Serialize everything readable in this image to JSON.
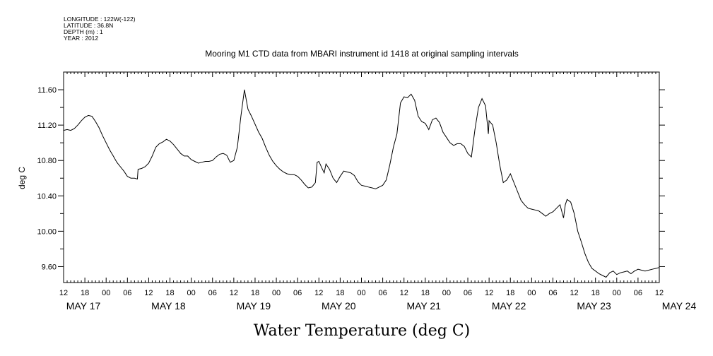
{
  "chart_data": {
    "type": "line",
    "header_info": [
      "LONGITUDE : 122W(-122)",
      "LATITUDE : 36.8N",
      "DEPTH (m) : 1",
      "YEAR : 2012"
    ],
    "title": "Mooring M1 CTD data from MBARI instrument id 1418 at original sampling intervals",
    "xlabel": "Water Temperature (deg C)",
    "ylabel": "deg C",
    "x_unit": "hours since 2012-05-16 12:00",
    "xlim": [
      0,
      168
    ],
    "ylim": [
      9.42,
      11.8
    ],
    "y_ticks": [
      "11.60",
      "11.20",
      "10.80",
      "10.40",
      "10.00",
      "9.60"
    ],
    "y_tick_values": [
      11.6,
      11.2,
      10.8,
      10.4,
      10.0,
      9.6
    ],
    "x_hour_labels": [
      "12",
      "18",
      "00",
      "06",
      "12",
      "18",
      "00",
      "06",
      "12",
      "18",
      "00",
      "06",
      "12",
      "18",
      "00",
      "06",
      "12",
      "18",
      "00",
      "06",
      "12",
      "18",
      "00",
      "06",
      "12",
      "18",
      "00",
      "06",
      "12"
    ],
    "x_day_labels": [
      {
        "label": "MAY 17",
        "hour": 12
      },
      {
        "label": "MAY 18",
        "hour": 36
      },
      {
        "label": "MAY 19",
        "hour": 60
      },
      {
        "label": "MAY 20",
        "hour": 84
      },
      {
        "label": "MAY 21",
        "hour": 108
      },
      {
        "label": "MAY 22",
        "hour": 132
      },
      {
        "label": "MAY 23",
        "hour": 156
      },
      {
        "label": "MAY 24",
        "hour": 180
      }
    ],
    "grid": false,
    "series": [
      {
        "name": "",
        "color": "#000000",
        "points": [
          [
            0,
            11.14
          ],
          [
            1,
            11.15
          ],
          [
            2,
            11.14
          ],
          [
            3,
            11.16
          ],
          [
            4,
            11.2
          ],
          [
            5,
            11.25
          ],
          [
            6,
            11.29
          ],
          [
            7,
            11.31
          ],
          [
            8,
            11.3
          ],
          [
            9,
            11.24
          ],
          [
            10,
            11.17
          ],
          [
            11,
            11.08
          ],
          [
            12,
            11.0
          ],
          [
            13,
            10.92
          ],
          [
            14,
            10.85
          ],
          [
            15,
            10.78
          ],
          [
            16,
            10.73
          ],
          [
            17,
            10.68
          ],
          [
            18,
            10.62
          ],
          [
            19,
            10.6
          ],
          [
            20,
            10.6
          ],
          [
            20.8,
            10.59
          ],
          [
            21,
            10.7
          ],
          [
            22,
            10.71
          ],
          [
            23,
            10.73
          ],
          [
            24,
            10.77
          ],
          [
            25,
            10.85
          ],
          [
            26,
            10.95
          ],
          [
            27,
            10.99
          ],
          [
            28,
            11.01
          ],
          [
            29,
            11.04
          ],
          [
            30,
            11.02
          ],
          [
            31,
            10.98
          ],
          [
            32,
            10.93
          ],
          [
            33,
            10.88
          ],
          [
            34,
            10.85
          ],
          [
            35,
            10.85
          ],
          [
            36,
            10.81
          ],
          [
            37,
            10.79
          ],
          [
            38,
            10.77
          ],
          [
            39,
            10.78
          ],
          [
            40,
            10.79
          ],
          [
            41,
            10.79
          ],
          [
            42,
            10.8
          ],
          [
            43,
            10.84
          ],
          [
            44,
            10.87
          ],
          [
            45,
            10.88
          ],
          [
            46,
            10.86
          ],
          [
            47,
            10.78
          ],
          [
            48,
            10.8
          ],
          [
            49,
            10.95
          ],
          [
            50,
            11.3
          ],
          [
            51,
            11.6
          ],
          [
            52,
            11.38
          ],
          [
            53,
            11.3
          ],
          [
            54,
            11.21
          ],
          [
            55,
            11.12
          ],
          [
            56,
            11.05
          ],
          [
            57,
            10.95
          ],
          [
            58,
            10.86
          ],
          [
            59,
            10.79
          ],
          [
            60,
            10.74
          ],
          [
            61,
            10.7
          ],
          [
            62,
            10.67
          ],
          [
            63,
            10.65
          ],
          [
            64,
            10.64
          ],
          [
            65,
            10.64
          ],
          [
            66,
            10.62
          ],
          [
            67,
            10.58
          ],
          [
            68,
            10.53
          ],
          [
            69,
            10.49
          ],
          [
            70,
            10.5
          ],
          [
            71,
            10.55
          ],
          [
            71.5,
            10.78
          ],
          [
            72,
            10.79
          ],
          [
            73,
            10.7
          ],
          [
            73.5,
            10.66
          ],
          [
            74,
            10.76
          ],
          [
            75,
            10.7
          ],
          [
            76,
            10.6
          ],
          [
            77,
            10.55
          ],
          [
            78,
            10.62
          ],
          [
            79,
            10.68
          ],
          [
            80,
            10.67
          ],
          [
            81,
            10.66
          ],
          [
            82,
            10.63
          ],
          [
            83,
            10.56
          ],
          [
            84,
            10.52
          ],
          [
            85,
            10.51
          ],
          [
            86,
            10.5
          ],
          [
            87,
            10.49
          ],
          [
            88,
            10.48
          ],
          [
            89,
            10.5
          ],
          [
            90,
            10.52
          ],
          [
            91,
            10.58
          ],
          [
            92,
            10.75
          ],
          [
            93,
            10.95
          ],
          [
            94,
            11.1
          ],
          [
            95,
            11.45
          ],
          [
            96,
            11.52
          ],
          [
            97,
            11.51
          ],
          [
            98,
            11.55
          ],
          [
            99,
            11.48
          ],
          [
            100,
            11.3
          ],
          [
            101,
            11.24
          ],
          [
            102,
            11.22
          ],
          [
            103,
            11.15
          ],
          [
            104,
            11.26
          ],
          [
            105,
            11.28
          ],
          [
            106,
            11.23
          ],
          [
            107,
            11.12
          ],
          [
            108,
            11.06
          ],
          [
            109,
            11.0
          ],
          [
            110,
            10.97
          ],
          [
            111,
            10.99
          ],
          [
            112,
            10.99
          ],
          [
            113,
            10.96
          ],
          [
            114,
            10.88
          ],
          [
            115,
            10.84
          ],
          [
            116,
            11.15
          ],
          [
            117,
            11.4
          ],
          [
            118,
            11.5
          ],
          [
            119,
            11.42
          ],
          [
            119.8,
            11.1
          ],
          [
            120,
            11.25
          ],
          [
            121,
            11.2
          ],
          [
            122,
            11.0
          ],
          [
            123,
            10.75
          ],
          [
            124,
            10.55
          ],
          [
            125,
            10.58
          ],
          [
            126,
            10.65
          ],
          [
            127,
            10.55
          ],
          [
            128,
            10.45
          ],
          [
            129,
            10.35
          ],
          [
            130,
            10.3
          ],
          [
            131,
            10.26
          ],
          [
            132,
            10.25
          ],
          [
            133,
            10.24
          ],
          [
            134,
            10.23
          ],
          [
            135,
            10.2
          ],
          [
            136,
            10.17
          ],
          [
            137,
            10.2
          ],
          [
            138,
            10.22
          ],
          [
            139,
            10.26
          ],
          [
            140,
            10.3
          ],
          [
            141,
            10.15
          ],
          [
            141.5,
            10.3
          ],
          [
            142,
            10.36
          ],
          [
            143,
            10.33
          ],
          [
            144,
            10.2
          ],
          [
            145,
            10.0
          ],
          [
            146,
            9.88
          ],
          [
            147,
            9.75
          ],
          [
            148,
            9.65
          ],
          [
            149,
            9.58
          ],
          [
            150,
            9.55
          ],
          [
            151,
            9.52
          ],
          [
            152,
            9.5
          ],
          [
            153,
            9.48
          ],
          [
            154,
            9.53
          ],
          [
            155,
            9.55
          ],
          [
            156,
            9.51
          ],
          [
            157,
            9.53
          ],
          [
            158,
            9.54
          ],
          [
            159,
            9.55
          ],
          [
            160,
            9.52
          ],
          [
            161,
            9.55
          ],
          [
            162,
            9.57
          ],
          [
            163,
            9.56
          ],
          [
            164,
            9.55
          ],
          [
            165,
            9.56
          ],
          [
            166,
            9.57
          ],
          [
            167,
            9.58
          ],
          [
            168,
            9.59
          ]
        ]
      }
    ]
  }
}
